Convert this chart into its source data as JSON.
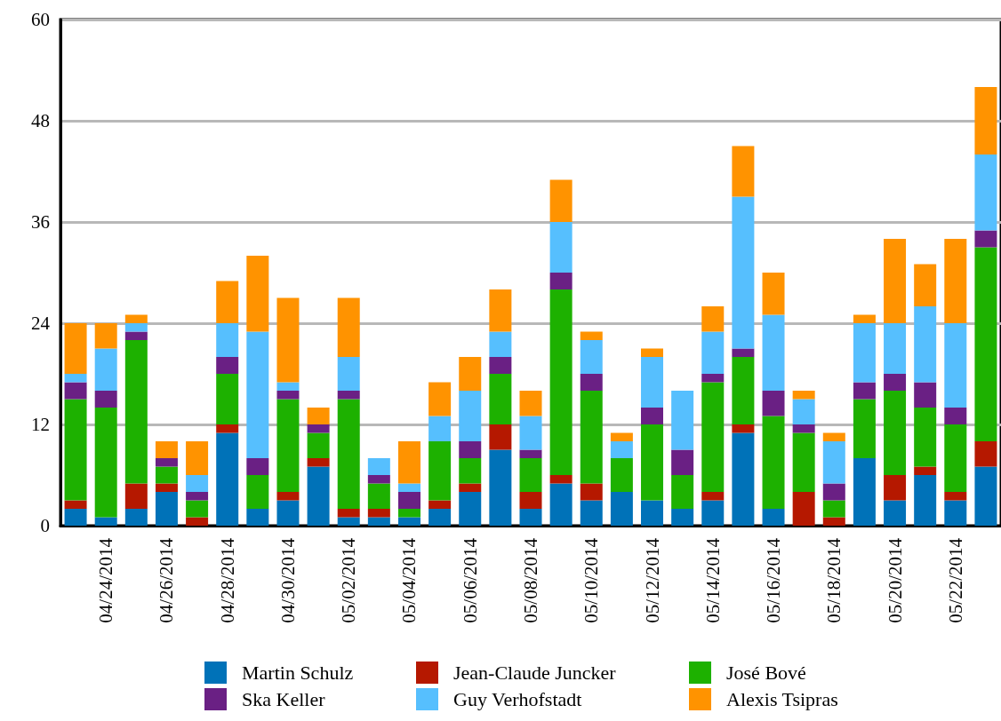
{
  "chart_data": {
    "type": "bar",
    "stacked": true,
    "categories": [
      null,
      "04/24/2014",
      null,
      "04/26/2014",
      null,
      "04/28/2014",
      null,
      "04/30/2014",
      null,
      "05/02/2014",
      null,
      "05/04/2014",
      null,
      "05/06/2014",
      null,
      "05/08/2014",
      null,
      "05/10/2014",
      null,
      "05/12/2014",
      null,
      "05/14/2014",
      null,
      "05/16/2014",
      null,
      "05/18/2014",
      null,
      "05/20/2014",
      null,
      "05/22/2014",
      null
    ],
    "series": [
      {
        "name": "Martin Schulz",
        "color": "#0072b8",
        "values": [
          2,
          1,
          2,
          4,
          0,
          11,
          2,
          3,
          7,
          1,
          1,
          1,
          2,
          4,
          9,
          2,
          5,
          3,
          4,
          3,
          2,
          3,
          11,
          2,
          0,
          0,
          8,
          3,
          6,
          3,
          7
        ]
      },
      {
        "name": "Jean-Claude Juncker",
        "color": "#b51800",
        "values": [
          1,
          0,
          3,
          1,
          1,
          1,
          0,
          1,
          1,
          1,
          1,
          0,
          1,
          1,
          3,
          2,
          1,
          2,
          0,
          0,
          0,
          1,
          1,
          0,
          4,
          1,
          0,
          3,
          1,
          1,
          3
        ]
      },
      {
        "name": "José Bové",
        "color": "#1db100",
        "values": [
          12,
          13,
          17,
          2,
          2,
          6,
          4,
          11,
          3,
          13,
          3,
          1,
          7,
          3,
          6,
          4,
          22,
          11,
          4,
          9,
          4,
          13,
          8,
          11,
          7,
          2,
          7,
          10,
          7,
          8,
          23
        ]
      },
      {
        "name": "Ska Keller",
        "color": "#6a2084",
        "values": [
          2,
          2,
          1,
          1,
          1,
          2,
          2,
          1,
          1,
          1,
          1,
          2,
          0,
          2,
          2,
          1,
          2,
          2,
          0,
          2,
          3,
          1,
          1,
          3,
          1,
          2,
          2,
          2,
          3,
          2,
          2
        ]
      },
      {
        "name": "Guy Verhofstadt",
        "color": "#56bffe",
        "values": [
          1,
          5,
          1,
          0,
          2,
          4,
          15,
          1,
          0,
          4,
          2,
          1,
          3,
          6,
          3,
          4,
          6,
          4,
          2,
          6,
          7,
          5,
          18,
          9,
          3,
          5,
          7,
          6,
          9,
          10,
          9
        ]
      },
      {
        "name": "Alexis Tsipras",
        "color": "#ff9300",
        "values": [
          6,
          3,
          1,
          2,
          4,
          5,
          9,
          10,
          2,
          7,
          0,
          5,
          4,
          4,
          5,
          3,
          5,
          1,
          1,
          1,
          0,
          3,
          6,
          5,
          1,
          1,
          1,
          10,
          5,
          10,
          8
        ]
      }
    ],
    "ylim": [
      0,
      60
    ],
    "yticks": [
      0,
      12,
      24,
      36,
      48,
      60
    ],
    "grid": "y",
    "legend": "bottom"
  }
}
